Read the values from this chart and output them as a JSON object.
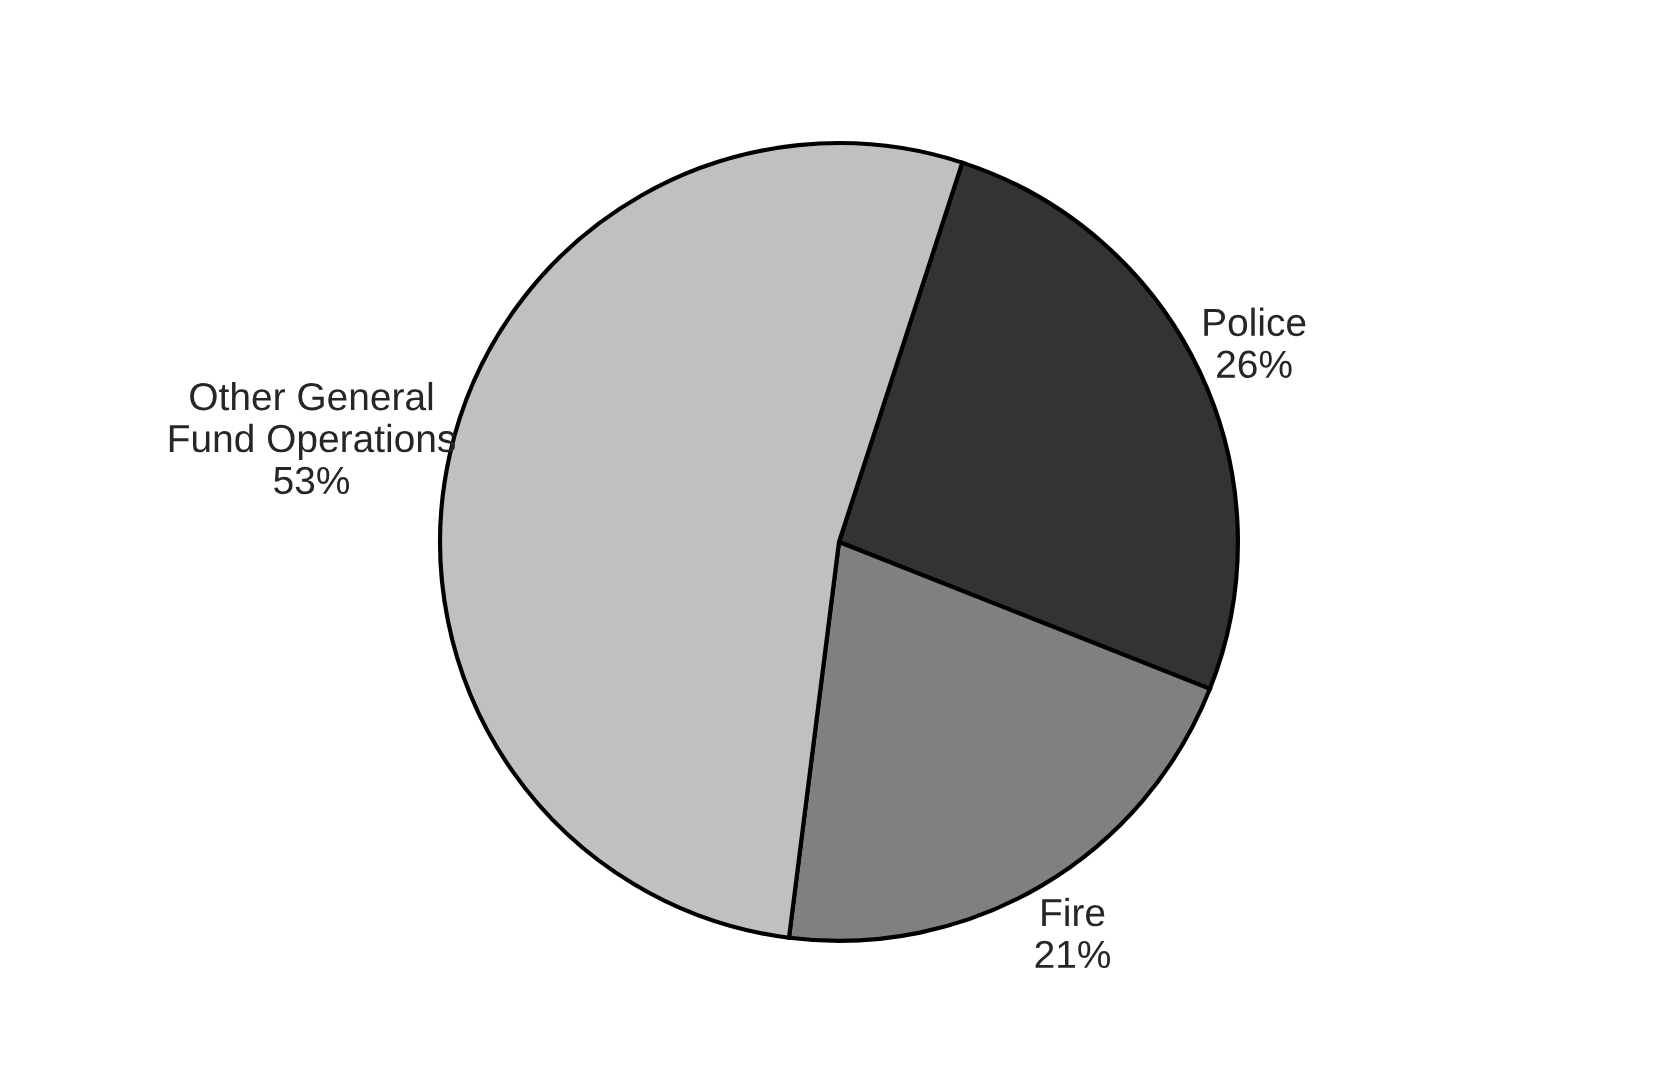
{
  "chart_data": {
    "type": "pie",
    "categories": [
      "Police",
      "Fire",
      "Other General\nFund Operations"
    ],
    "values": [
      26,
      21,
      53
    ],
    "value_labels": [
      "26%",
      "21%",
      "53%"
    ],
    "colors": [
      "#333333",
      "#808080",
      "#c0c0c0"
    ]
  }
}
